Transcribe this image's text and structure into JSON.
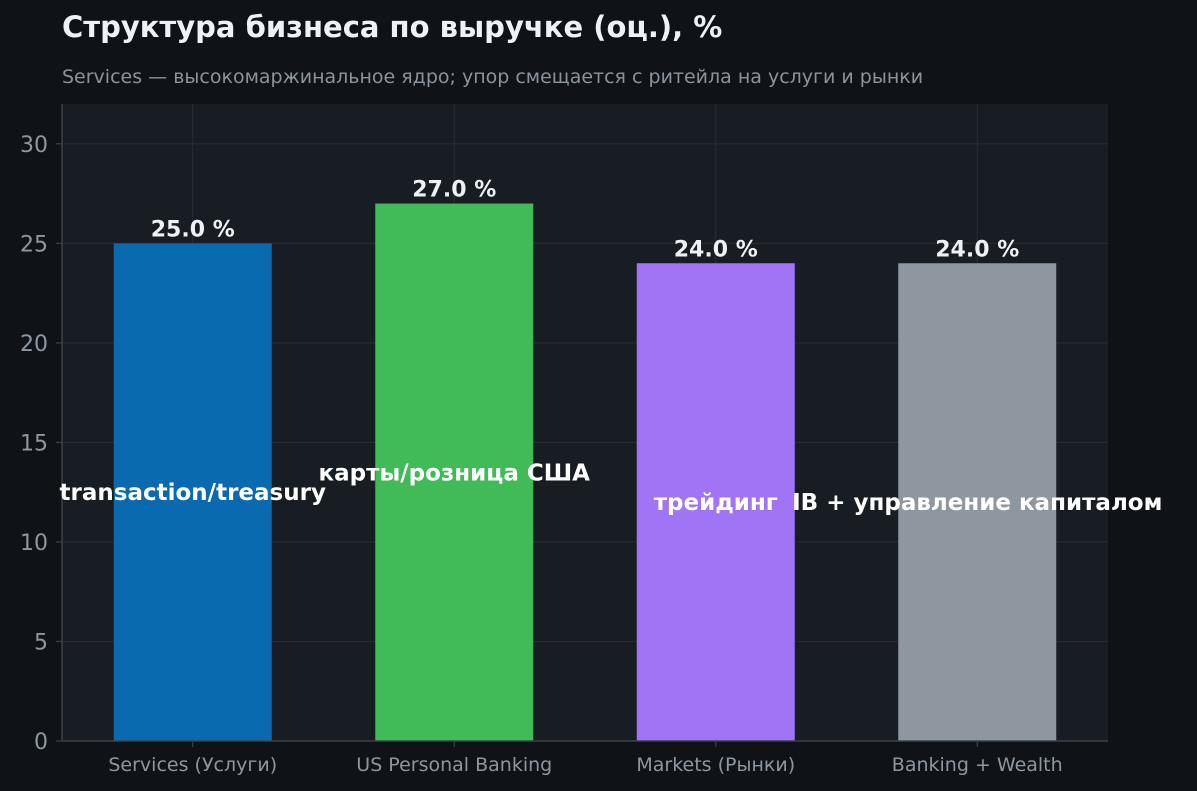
{
  "header": {
    "title": "Структура бизнеса по выручке (оц.), %",
    "subtitle": "Services — высокомаржинальное ядро; упор смещается с ритейла на услуги и рынки"
  },
  "colors": {
    "background": "#0f1317",
    "plot_background": "#181c23",
    "grid": "#262b33",
    "axis": "#3a414b"
  },
  "chart_data": {
    "type": "bar",
    "title": "Структура бизнеса по выручке (оц.), %",
    "subtitle": "Services — высокомаржинальное ядро; упор смещается с ритейла на услуги и рынки",
    "xlabel": "",
    "ylabel": "",
    "ylim": [
      0,
      32
    ],
    "yticks": [
      0,
      5,
      10,
      15,
      20,
      25,
      30
    ],
    "grid": true,
    "categories": [
      "Services (Услуги)",
      "US Personal Banking",
      "Markets (Рынки)",
      "Banking + Wealth"
    ],
    "values": [
      25.0,
      27.0,
      24.0,
      24.0
    ],
    "value_labels": [
      "25.0 %",
      "27.0 %",
      "24.0 %",
      "24.0 %"
    ],
    "bar_notes": [
      "transaction/treasury",
      "карты/розница США",
      "трейдинг",
      "IB + управление капиталом"
    ],
    "bar_colors": [
      "#0a6ab0",
      "#41bb57",
      "#a074f5",
      "#8e96a0"
    ]
  }
}
